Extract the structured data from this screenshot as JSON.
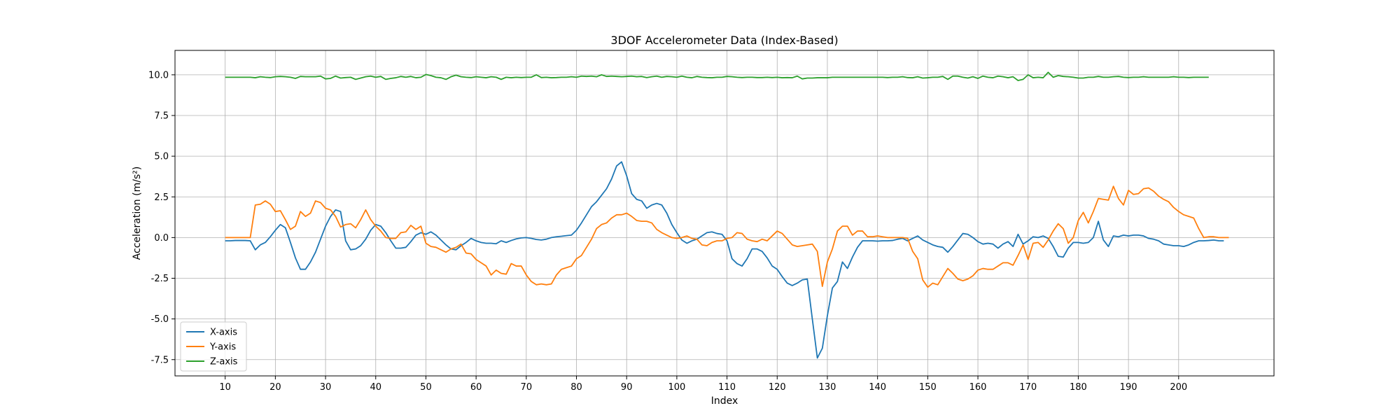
{
  "chart_data": {
    "type": "line",
    "title": "3DOF Accelerometer Data (Index-Based)",
    "xlabel": "Index",
    "ylabel": "Acceleration (m/s²)",
    "xlim": [
      0,
      219
    ],
    "ylim": [
      -8.5,
      11.5
    ],
    "xticks": [
      10,
      20,
      30,
      40,
      50,
      60,
      70,
      80,
      90,
      100,
      110,
      120,
      130,
      140,
      150,
      160,
      170,
      180,
      190,
      200
    ],
    "yticks": [
      -7.5,
      -5.0,
      -2.5,
      0.0,
      2.5,
      5.0,
      7.5,
      10.0
    ],
    "grid": true,
    "legend_position": "lower-left",
    "x_start": 10,
    "series": [
      {
        "name": "X-axis",
        "color": "#1f77b4",
        "values": [
          -0.2,
          -0.2,
          -0.18,
          -0.18,
          -0.18,
          -0.2,
          -0.75,
          -0.45,
          -0.3,
          0.05,
          0.45,
          0.8,
          0.6,
          -0.3,
          -1.25,
          -1.95,
          -1.95,
          -1.5,
          -0.9,
          -0.1,
          0.7,
          1.3,
          1.7,
          1.6,
          -0.2,
          -0.75,
          -0.7,
          -0.5,
          -0.1,
          0.45,
          0.8,
          0.7,
          0.3,
          -0.2,
          -0.65,
          -0.65,
          -0.6,
          -0.25,
          0.15,
          0.3,
          0.2,
          0.35,
          0.15,
          -0.15,
          -0.45,
          -0.7,
          -0.75,
          -0.5,
          -0.3,
          -0.05,
          -0.2,
          -0.3,
          -0.35,
          -0.35,
          -0.38,
          -0.2,
          -0.3,
          -0.18,
          -0.08,
          -0.02,
          0.0,
          -0.05,
          -0.12,
          -0.15,
          -0.1,
          0.0,
          0.05,
          0.08,
          0.12,
          0.15,
          0.45,
          0.9,
          1.4,
          1.9,
          2.2,
          2.6,
          3.0,
          3.6,
          4.4,
          4.65,
          3.8,
          2.7,
          2.35,
          2.25,
          1.8,
          2.0,
          2.1,
          2.0,
          1.5,
          0.8,
          0.3,
          -0.15,
          -0.35,
          -0.2,
          -0.1,
          0.1,
          0.3,
          0.35,
          0.25,
          0.2,
          -0.2,
          -1.3,
          -1.6,
          -1.75,
          -1.3,
          -0.7,
          -0.7,
          -0.85,
          -1.25,
          -1.75,
          -1.95,
          -2.4,
          -2.8,
          -2.95,
          -2.8,
          -2.6,
          -2.55,
          -5.0,
          -7.4,
          -6.8,
          -4.8,
          -3.1,
          -2.7,
          -1.5,
          -1.9,
          -1.2,
          -0.6,
          -0.2,
          -0.2,
          -0.2,
          -0.22,
          -0.2,
          -0.2,
          -0.18,
          -0.1,
          -0.05,
          -0.2,
          -0.05,
          0.1,
          -0.15,
          -0.3,
          -0.45,
          -0.55,
          -0.6,
          -0.9,
          -0.55,
          -0.15,
          0.25,
          0.2,
          0.0,
          -0.25,
          -0.4,
          -0.35,
          -0.4,
          -0.65,
          -0.4,
          -0.25,
          -0.55,
          0.2,
          -0.4,
          -0.2,
          0.05,
          0.0,
          0.1,
          -0.05,
          -0.55,
          -1.15,
          -1.2,
          -0.65,
          -0.3,
          -0.3,
          -0.35,
          -0.3,
          0.0,
          1.0,
          -0.15,
          -0.55,
          0.1,
          0.05,
          0.15,
          0.1,
          0.15,
          0.15,
          0.1,
          -0.05,
          -0.1,
          -0.2,
          -0.4,
          -0.45,
          -0.5,
          -0.5,
          -0.55,
          -0.45,
          -0.3,
          -0.2,
          -0.2,
          -0.18,
          -0.15,
          -0.2,
          -0.2
        ]
      },
      {
        "name": "Y-axis",
        "color": "#ff7f0e",
        "values": [
          0.0,
          0.0,
          0.0,
          0.0,
          0.0,
          0.0,
          2.0,
          2.05,
          2.25,
          2.05,
          1.6,
          1.65,
          1.1,
          0.5,
          0.7,
          1.6,
          1.3,
          1.5,
          2.25,
          2.15,
          1.8,
          1.7,
          1.3,
          0.65,
          0.8,
          0.85,
          0.6,
          1.1,
          1.7,
          1.1,
          0.7,
          0.4,
          0.0,
          -0.05,
          -0.05,
          0.3,
          0.35,
          0.75,
          0.5,
          0.7,
          -0.35,
          -0.55,
          -0.6,
          -0.75,
          -0.9,
          -0.7,
          -0.6,
          -0.4,
          -0.95,
          -1.0,
          -1.35,
          -1.55,
          -1.75,
          -2.3,
          -2.0,
          -2.2,
          -2.25,
          -1.6,
          -1.75,
          -1.75,
          -2.3,
          -2.7,
          -2.9,
          -2.85,
          -2.9,
          -2.85,
          -2.3,
          -1.95,
          -1.85,
          -1.75,
          -1.3,
          -1.1,
          -0.6,
          -0.1,
          0.55,
          0.8,
          0.9,
          1.2,
          1.4,
          1.4,
          1.5,
          1.3,
          1.05,
          1.0,
          1.0,
          0.9,
          0.5,
          0.3,
          0.15,
          0.0,
          -0.05,
          0.0,
          0.1,
          -0.05,
          -0.1,
          -0.45,
          -0.5,
          -0.3,
          -0.2,
          -0.2,
          -0.05,
          0.0,
          0.3,
          0.25,
          -0.1,
          -0.2,
          -0.25,
          -0.1,
          -0.2,
          0.1,
          0.4,
          0.25,
          -0.1,
          -0.45,
          -0.55,
          -0.5,
          -0.45,
          -0.4,
          -0.85,
          -3.0,
          -1.5,
          -0.7,
          0.4,
          0.7,
          0.7,
          0.15,
          0.4,
          0.4,
          0.05,
          0.05,
          0.1,
          0.05,
          0.0,
          0.0,
          0.0,
          0.0,
          -0.05,
          -0.85,
          -1.3,
          -2.6,
          -3.05,
          -2.8,
          -2.9,
          -2.4,
          -1.9,
          -2.2,
          -2.55,
          -2.65,
          -2.55,
          -2.35,
          -2.0,
          -1.9,
          -1.95,
          -1.95,
          -1.75,
          -1.55,
          -1.55,
          -1.7,
          -1.1,
          -0.45,
          -1.35,
          -0.35,
          -0.3,
          -0.6,
          -0.15,
          0.4,
          0.85,
          0.55,
          -0.35,
          0.0,
          1.05,
          1.55,
          0.9,
          1.6,
          2.4,
          2.35,
          2.3,
          3.15,
          2.4,
          2.0,
          2.9,
          2.65,
          2.7,
          3.0,
          3.05,
          2.85,
          2.55,
          2.35,
          2.2,
          1.85,
          1.6,
          1.4,
          1.3,
          1.2,
          0.55,
          0.0,
          0.05,
          0.05,
          0.0,
          0.0,
          0.0
        ]
      },
      {
        "name": "Z-axis",
        "color": "#2ca02c",
        "values": [
          9.85,
          9.85,
          9.85,
          9.85,
          9.85,
          9.85,
          9.82,
          9.88,
          9.85,
          9.83,
          9.88,
          9.9,
          9.88,
          9.85,
          9.78,
          9.9,
          9.88,
          9.88,
          9.88,
          9.92,
          9.75,
          9.78,
          9.92,
          9.8,
          9.83,
          9.85,
          9.72,
          9.8,
          9.88,
          9.92,
          9.85,
          9.9,
          9.72,
          9.78,
          9.82,
          9.9,
          9.85,
          9.9,
          9.82,
          9.85,
          10.02,
          9.95,
          9.85,
          9.82,
          9.72,
          9.88,
          9.98,
          9.88,
          9.85,
          9.83,
          9.88,
          9.85,
          9.82,
          9.88,
          9.85,
          9.72,
          9.85,
          9.82,
          9.85,
          9.83,
          9.85,
          9.85,
          10.0,
          9.83,
          9.85,
          9.82,
          9.83,
          9.85,
          9.85,
          9.88,
          9.85,
          9.92,
          9.9,
          9.92,
          9.88,
          10.0,
          9.9,
          9.92,
          9.9,
          9.88,
          9.9,
          9.92,
          9.88,
          9.9,
          9.83,
          9.88,
          9.92,
          9.85,
          9.9,
          9.88,
          9.85,
          9.92,
          9.85,
          9.82,
          9.9,
          9.85,
          9.83,
          9.82,
          9.85,
          9.85,
          9.9,
          9.88,
          9.85,
          9.83,
          9.85,
          9.85,
          9.83,
          9.83,
          9.85,
          9.83,
          9.85,
          9.82,
          9.83,
          9.82,
          9.92,
          9.75,
          9.8,
          9.8,
          9.82,
          9.82,
          9.82,
          9.85,
          9.85,
          9.85,
          9.85,
          9.85,
          9.85,
          9.85,
          9.85,
          9.85,
          9.85,
          9.85,
          9.83,
          9.85,
          9.85,
          9.88,
          9.83,
          9.82,
          9.88,
          9.8,
          9.82,
          9.85,
          9.85,
          9.9,
          9.72,
          9.92,
          9.92,
          9.85,
          9.8,
          9.88,
          9.78,
          9.92,
          9.85,
          9.82,
          9.92,
          9.88,
          9.82,
          9.88,
          9.65,
          9.72,
          10.0,
          9.82,
          9.85,
          9.82,
          10.15,
          9.85,
          9.95,
          9.9,
          9.88,
          9.85,
          9.8,
          9.8,
          9.85,
          9.85,
          9.9,
          9.85,
          9.85,
          9.88,
          9.9,
          9.85,
          9.83,
          9.85,
          9.85,
          9.88,
          9.85,
          9.85,
          9.85,
          9.85,
          9.85,
          9.88,
          9.85,
          9.85,
          9.83,
          9.85,
          9.85,
          9.85,
          9.85
        ]
      }
    ]
  }
}
